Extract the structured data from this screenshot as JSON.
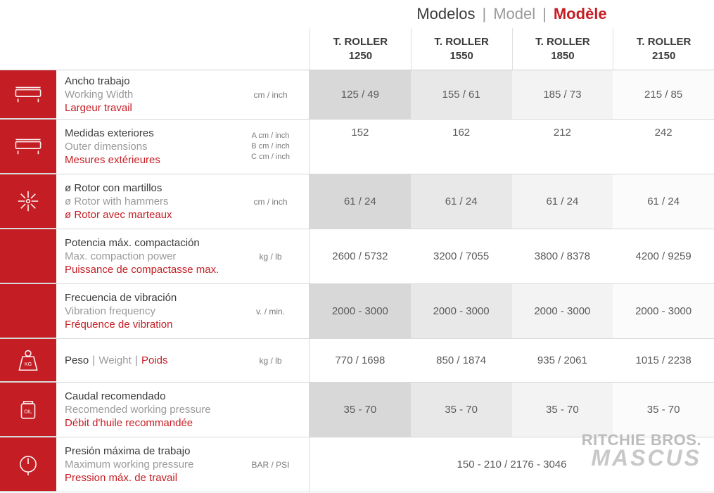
{
  "title": {
    "es": "Modelos",
    "en": "Model",
    "fr": "Modèle"
  },
  "models": [
    {
      "name1": "T. ROLLER",
      "name2": "1250"
    },
    {
      "name1": "T. ROLLER",
      "name2": "1550"
    },
    {
      "name1": "T. ROLLER",
      "name2": "1850"
    },
    {
      "name1": "T. ROLLER",
      "name2": "2150"
    }
  ],
  "rows": [
    {
      "key": "width",
      "es": "Ancho trabajo",
      "en": "Working Width",
      "fr": "Largeur travail",
      "unit": "cm / inch",
      "values": [
        "125 / 49",
        "155 / 61",
        "185 / 73",
        "215 / 85"
      ],
      "shaded": true
    },
    {
      "key": "outer",
      "es": "Medidas exteriores",
      "en": "Outer dimensions",
      "fr": "Mesures extérieures",
      "units": [
        "A cm / inch",
        "B cm / inch",
        "C cm / inch"
      ],
      "values": [
        "152",
        "162",
        "212",
        "242"
      ],
      "shaded": false,
      "top_values": true
    },
    {
      "key": "rotor",
      "es": "ø Rotor con martillos",
      "en": "ø Rotor with hammers",
      "fr": "ø Rotor avec marteaux",
      "unit": "cm / inch",
      "values": [
        "61 / 24",
        "61 / 24",
        "61 / 24",
        "61 / 24"
      ],
      "shaded": true
    },
    {
      "key": "power",
      "es": "Potencia máx. compactación",
      "en": "Max. compaction power",
      "fr": "Puissance de compactasse max.",
      "unit": "kg / lb",
      "values": [
        "2600 / 5732",
        "3200 / 7055",
        "3800 / 8378",
        "4200 / 9259"
      ],
      "shaded": false
    },
    {
      "key": "freq",
      "es": "Frecuencia de vibración",
      "en": "Vibration frequency",
      "fr": "Fréquence de vibration",
      "unit": "v. / min.",
      "values": [
        "2000 - 3000",
        "2000 - 3000",
        "2000 - 3000",
        "2000 - 3000"
      ],
      "shaded": true
    },
    {
      "key": "weight",
      "inline": true,
      "es": "Peso",
      "en": "Weight",
      "fr": "Poids",
      "unit": "kg / lb",
      "values": [
        "770 / 1698",
        "850 / 1874",
        "935 / 2061",
        "1015 / 2238"
      ],
      "shaded": false
    },
    {
      "key": "flow",
      "es": "Caudal recomendado",
      "en": "Recomended working pressure",
      "fr": "Débit d'huile recommandée",
      "unit": "",
      "values": [
        "35 - 70",
        "35 - 70",
        "35 - 70",
        "35 - 70"
      ],
      "shaded": true
    },
    {
      "key": "pressure",
      "es": "Presión máxima de trabajo",
      "en": "Maximum working pressure",
      "fr": "Pression máx. de travail",
      "unit": "BAR / PSI",
      "span_value": "150 - 210 / 2176 - 3046",
      "shaded": false
    }
  ],
  "colors": {
    "accent": "#c41e24",
    "text_es": "#3a3a3a",
    "text_en": "#9a9a9a",
    "shade1": "#d8d8d8",
    "shade2": "#e8e8e8",
    "shade3": "#f3f3f3",
    "shade4": "#fbfbfb"
  },
  "watermark": {
    "line1": "RITCHIE BROS.",
    "line2": "MASCUS"
  }
}
